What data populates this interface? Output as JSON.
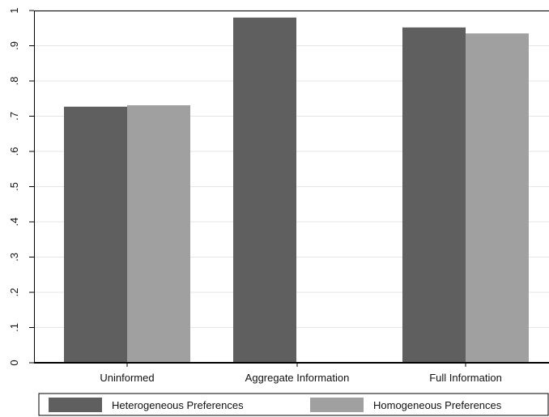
{
  "chart_data": {
    "type": "bar",
    "categories": [
      "Uninformed",
      "Aggregate Information",
      "Full Information"
    ],
    "series": [
      {
        "name": "Heterogeneous Preferences",
        "values": [
          0.727,
          0.98,
          0.952
        ],
        "color": "#5f5f5f"
      },
      {
        "name": "Homogeneous Preferences",
        "values": [
          0.731,
          null,
          0.935
        ],
        "color": "#a0a0a0"
      }
    ],
    "ylim": [
      0,
      1
    ],
    "yticks": [
      0,
      0.1,
      0.2,
      0.3,
      0.4,
      0.5,
      0.6,
      0.7,
      0.8,
      0.9,
      1
    ],
    "ytick_labels": [
      "0",
      ".1",
      ".2",
      ".3",
      ".4",
      ".5",
      ".6",
      ".7",
      ".8",
      ".9",
      "1"
    ],
    "grid": true,
    "gridline_color": "#e6e6e6",
    "legend_position": "bottom"
  }
}
